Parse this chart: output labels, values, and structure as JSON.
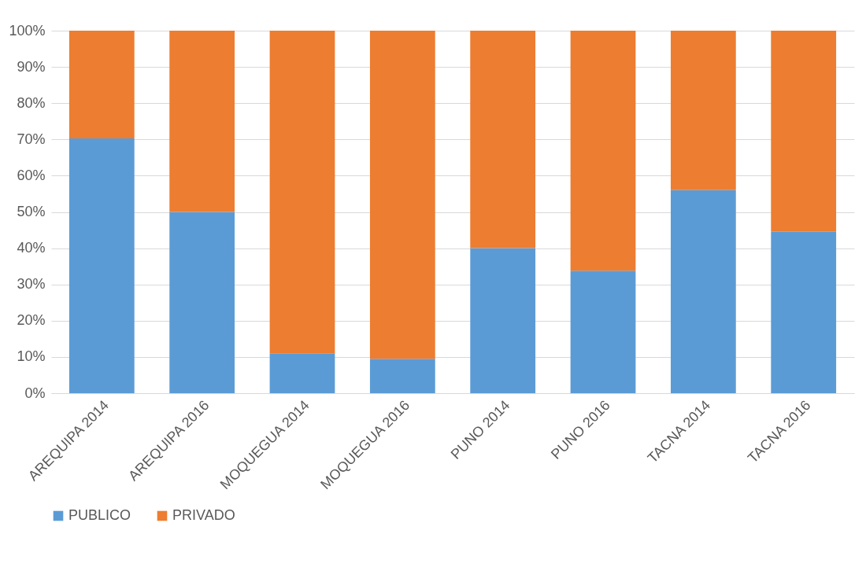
{
  "chart_data": {
    "type": "bar",
    "stacked": true,
    "categories": [
      "AREQUIPA 2014",
      "AREQUIPA 2016",
      "MOQUEGUA 2014",
      "MOQUEGUA 2016",
      "PUNO 2014",
      "PUNO 2016",
      "TACNA 2014",
      "TACNA 2016"
    ],
    "series": [
      {
        "name": "PUBLICO",
        "color": "#5b9bd5",
        "values": [
          70.3,
          50,
          11,
          9.5,
          40,
          33.8,
          56,
          44.5
        ]
      },
      {
        "name": "PRIVADO",
        "color": "#ed7d31",
        "values": [
          29.7,
          50,
          89,
          90.5,
          60,
          66.2,
          44,
          55.5
        ]
      }
    ],
    "ylim": [
      0,
      100
    ],
    "yticks": [
      {
        "value": 0,
        "label": "0%"
      },
      {
        "value": 10,
        "label": "10%"
      },
      {
        "value": 20,
        "label": "20%"
      },
      {
        "value": 30,
        "label": "30%"
      },
      {
        "value": 40,
        "label": "40%"
      },
      {
        "value": 50,
        "label": "50%"
      },
      {
        "value": 60,
        "label": "60%"
      },
      {
        "value": 70,
        "label": "70%"
      },
      {
        "value": 80,
        "label": "80%"
      },
      {
        "value": 90,
        "label": "90%"
      },
      {
        "value": 100,
        "label": "100%"
      }
    ],
    "grid": "y",
    "legend": "bottom"
  }
}
